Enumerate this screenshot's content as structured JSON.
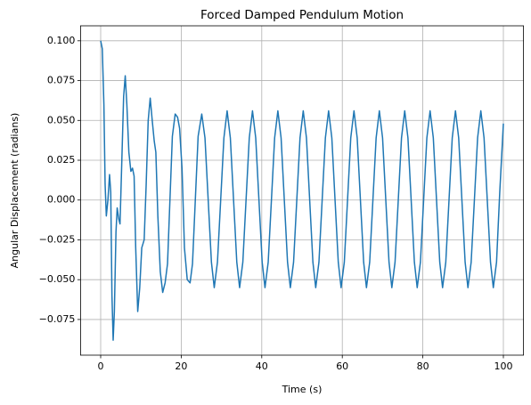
{
  "chart_data": {
    "type": "line",
    "title": "Forced Damped Pendulum Motion",
    "x_label": "Time (s)",
    "y_label": "Angular Displacement (radians)",
    "x": [
      0,
      0.4,
      0.8,
      1.1,
      1.4,
      1.8,
      2.2,
      2.5,
      2.8,
      3.1,
      3.4,
      3.8,
      4.1,
      4.5,
      4.8,
      5.2,
      5.7,
      6.1,
      6.5,
      7.0,
      7.5,
      7.9,
      8.3,
      8.7,
      9.2,
      9.7,
      10.2,
      10.8,
      11.3,
      11.8,
      12.3,
      12.8,
      13.3,
      13.7,
      14.2,
      14.8,
      15.4,
      16.0,
      16.6,
      17.2,
      17.8,
      18.5,
      19.1,
      19.6,
      20.2,
      20.8,
      21.5,
      22.2,
      22.8,
      23.5,
      24.2,
      25.1,
      25.9,
      26.7,
      27.5,
      28.2,
      29.0,
      29.8,
      30.6,
      31.4,
      32.2,
      33.0,
      33.8,
      34.5,
      35.3,
      36.1,
      36.9,
      37.7,
      38.5,
      39.3,
      40.1,
      40.8,
      41.6,
      42.4,
      43.2,
      44.0,
      44.8,
      45.6,
      46.4,
      47.1,
      47.9,
      48.7,
      49.5,
      50.3,
      51.1,
      51.9,
      52.7,
      53.4,
      54.2,
      55.0,
      55.8,
      56.6,
      57.4,
      58.2,
      59.0,
      59.7,
      60.5,
      61.3,
      62.1,
      62.9,
      63.7,
      64.5,
      65.3,
      66.0,
      66.8,
      67.6,
      68.4,
      69.2,
      70.0,
      70.8,
      71.6,
      72.3,
      73.1,
      73.9,
      74.7,
      75.5,
      76.3,
      77.1,
      77.9,
      78.6,
      79.4,
      80.2,
      81.0,
      81.8,
      82.6,
      83.4,
      84.2,
      84.9,
      85.7,
      86.5,
      87.3,
      88.1,
      88.9,
      89.7,
      90.5,
      91.2,
      92.0,
      92.8,
      93.6,
      94.4,
      95.2,
      96.0,
      96.8,
      97.5,
      98.3,
      99.1,
      100
    ],
    "series": [
      {
        "color": "#1f77b4",
        "values": [
          0.1,
          0.095,
          0.06,
          0.01,
          -0.01,
          0.0,
          0.016,
          0.005,
          -0.06,
          -0.088,
          -0.07,
          -0.02,
          -0.005,
          -0.012,
          -0.015,
          0.02,
          0.065,
          0.078,
          0.06,
          0.03,
          0.018,
          0.02,
          0.015,
          -0.03,
          -0.07,
          -0.055,
          -0.03,
          -0.025,
          0.01,
          0.05,
          0.064,
          0.05,
          0.037,
          0.03,
          -0.01,
          -0.045,
          -0.058,
          -0.052,
          -0.04,
          0.0,
          0.04,
          0.054,
          0.052,
          0.045,
          0.02,
          -0.03,
          -0.05,
          -0.052,
          -0.04,
          0.0,
          0.04,
          0.054,
          0.039,
          0,
          -0.039,
          -0.055,
          -0.039,
          0,
          0.039,
          0.056,
          0.039,
          0,
          -0.039,
          -0.055,
          -0.039,
          0,
          0.039,
          0.056,
          0.039,
          0,
          -0.039,
          -0.055,
          -0.039,
          0,
          0.039,
          0.056,
          0.039,
          0,
          -0.039,
          -0.055,
          -0.039,
          0,
          0.039,
          0.056,
          0.039,
          0,
          -0.039,
          -0.055,
          -0.039,
          0,
          0.039,
          0.056,
          0.039,
          0,
          -0.039,
          -0.055,
          -0.039,
          0,
          0.039,
          0.056,
          0.039,
          0,
          -0.039,
          -0.055,
          -0.039,
          0,
          0.039,
          0.056,
          0.039,
          0,
          -0.039,
          -0.055,
          -0.039,
          0,
          0.039,
          0.056,
          0.039,
          0,
          -0.039,
          -0.055,
          -0.039,
          0,
          0.039,
          0.056,
          0.039,
          0,
          -0.039,
          -0.055,
          -0.039,
          0,
          0.039,
          0.056,
          0.039,
          0,
          -0.039,
          -0.055,
          -0.039,
          0,
          0.039,
          0.056,
          0.039,
          0,
          -0.039,
          -0.055,
          -0.039,
          0.005,
          0.048
        ]
      }
    ],
    "xlim": [
      -5,
      105
    ],
    "xticks": [
      0,
      20,
      40,
      60,
      80,
      100
    ],
    "ylim": [
      -0.0974,
      0.1094
    ],
    "yticks": [
      {
        "value": -0.075,
        "label": "−0.075"
      },
      {
        "value": -0.05,
        "label": "−0.050"
      },
      {
        "value": -0.025,
        "label": "−0.025"
      },
      {
        "value": 0,
        "label": "0.000"
      },
      {
        "value": 0.025,
        "label": "0.025"
      },
      {
        "value": 0.05,
        "label": "0.050"
      },
      {
        "value": 0.075,
        "label": "0.075"
      },
      {
        "value": 0.1,
        "label": "0.100"
      }
    ],
    "grid": true
  }
}
